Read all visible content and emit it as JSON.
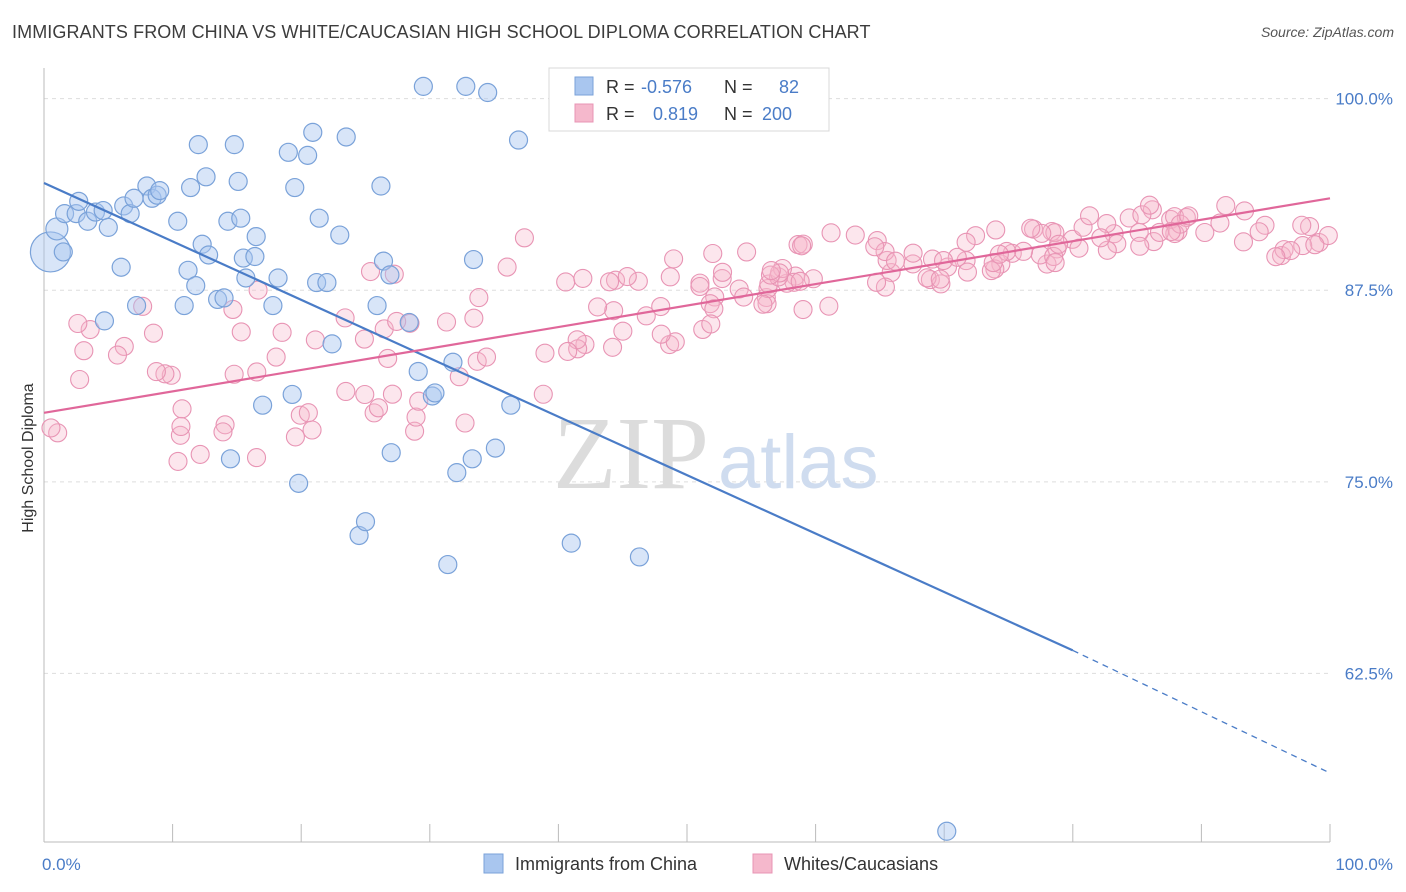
{
  "title": "IMMIGRANTS FROM CHINA VS WHITE/CAUCASIAN HIGH SCHOOL DIPLOMA CORRELATION CHART",
  "source": "Source: ZipAtlas.com",
  "watermark": {
    "zip": "ZIP",
    "atlas": "atlas"
  },
  "colors": {
    "blue": "#4a7cc7",
    "blue_fill": "#a9c6ef",
    "pink": "#e0679a",
    "pink_fill": "#f5b8cc",
    "grid": "#dddddd"
  },
  "legend": {
    "rows": [
      {
        "r_label": "R =",
        "r_value": "-0.576",
        "n_label": "N =",
        "n_value": "82"
      },
      {
        "r_label": "R =",
        "r_value": "0.819",
        "n_label": "N =",
        "n_value": "200"
      }
    ]
  },
  "bottom_legend": [
    "Immigrants from China",
    "Whites/Caucasians"
  ],
  "chart_data": {
    "type": "scatter",
    "title": "IMMIGRANTS FROM CHINA VS WHITE/CAUCASIAN HIGH SCHOOL DIPLOMA CORRELATION CHART",
    "xlabel": "",
    "ylabel": "High School Diploma",
    "xlim": [
      0,
      100
    ],
    "ylim": [
      51.5,
      102
    ],
    "x_tick_labels": [
      "0.0%",
      "100.0%"
    ],
    "y_tick_values": [
      62.5,
      75.0,
      87.5,
      100.0
    ],
    "y_tick_labels": [
      "62.5%",
      "75.0%",
      "87.5%",
      "100.0%"
    ],
    "grid": true,
    "legend_position": "top-center",
    "series": [
      {
        "name": "Immigrants from China",
        "color": "#4a7cc7",
        "r": -0.576,
        "n": 82,
        "trend": {
          "x0": 0,
          "y0": 94.5,
          "x1": 80,
          "y1": 64.0,
          "dashed_to_x": 100,
          "dashed_to_y": 56.0
        },
        "points": [
          [
            0.5,
            90
          ],
          [
            1,
            91.5
          ],
          [
            1.5,
            90
          ],
          [
            1.6,
            92.5
          ],
          [
            2.5,
            92.5
          ],
          [
            2.7,
            93.3
          ],
          [
            3.4,
            92
          ],
          [
            4,
            92.6
          ],
          [
            4.6,
            92.7
          ],
          [
            4.7,
            85.5
          ],
          [
            5,
            91.6
          ],
          [
            6,
            89
          ],
          [
            6.2,
            93
          ],
          [
            6.7,
            92.5
          ],
          [
            7,
            93.5
          ],
          [
            7.2,
            86.5
          ],
          [
            8,
            94.3
          ],
          [
            8.4,
            93.5
          ],
          [
            8.8,
            93.7
          ],
          [
            9,
            94
          ],
          [
            10.4,
            92
          ],
          [
            10.9,
            86.5
          ],
          [
            11.2,
            88.8
          ],
          [
            11.4,
            94.2
          ],
          [
            11.8,
            87.8
          ],
          [
            12,
            97
          ],
          [
            12.3,
            90.5
          ],
          [
            12.6,
            94.9
          ],
          [
            12.8,
            89.8
          ],
          [
            13.5,
            86.9
          ],
          [
            14,
            87
          ],
          [
            14.3,
            92
          ],
          [
            14.5,
            76.5
          ],
          [
            14.8,
            97
          ],
          [
            15.1,
            94.6
          ],
          [
            15.3,
            92.2
          ],
          [
            15.5,
            89.6
          ],
          [
            15.7,
            88.3
          ],
          [
            16.4,
            89.7
          ],
          [
            16.5,
            91
          ],
          [
            17,
            80
          ],
          [
            17.8,
            86.5
          ],
          [
            18.2,
            88.3
          ],
          [
            19,
            96.5
          ],
          [
            19.3,
            80.7
          ],
          [
            19.5,
            94.2
          ],
          [
            19.8,
            74.9
          ],
          [
            20.5,
            96.3
          ],
          [
            20.9,
            97.8
          ],
          [
            21.2,
            88
          ],
          [
            21.4,
            92.2
          ],
          [
            22,
            88
          ],
          [
            22.4,
            84
          ],
          [
            23,
            91.1
          ],
          [
            23.5,
            97.5
          ],
          [
            24.5,
            71.5
          ],
          [
            25,
            72.4
          ],
          [
            25.9,
            86.5
          ],
          [
            26.2,
            94.3
          ],
          [
            26.4,
            89.4
          ],
          [
            26.9,
            88.5
          ],
          [
            27,
            76.9
          ],
          [
            28.4,
            85.4
          ],
          [
            29.1,
            82.2
          ],
          [
            29.5,
            100.8
          ],
          [
            30.2,
            80.6
          ],
          [
            30.4,
            80.8
          ],
          [
            31.4,
            69.6
          ],
          [
            31.8,
            82.8
          ],
          [
            32.1,
            75.6
          ],
          [
            32.8,
            100.8
          ],
          [
            33.3,
            76.5
          ],
          [
            33.4,
            89.5
          ],
          [
            34.5,
            100.4
          ],
          [
            35.1,
            77.2
          ],
          [
            36.3,
            80
          ],
          [
            36.9,
            97.3
          ],
          [
            41,
            71
          ],
          [
            46.3,
            70.1
          ],
          [
            70.2,
            52.2
          ]
        ]
      },
      {
        "name": "Whites/Caucasians",
        "color": "#e0679a",
        "r": 0.819,
        "n": 200,
        "trend": {
          "x0": 0,
          "y0": 79.5,
          "x1": 100,
          "y1": 93.5
        }
      }
    ]
  }
}
